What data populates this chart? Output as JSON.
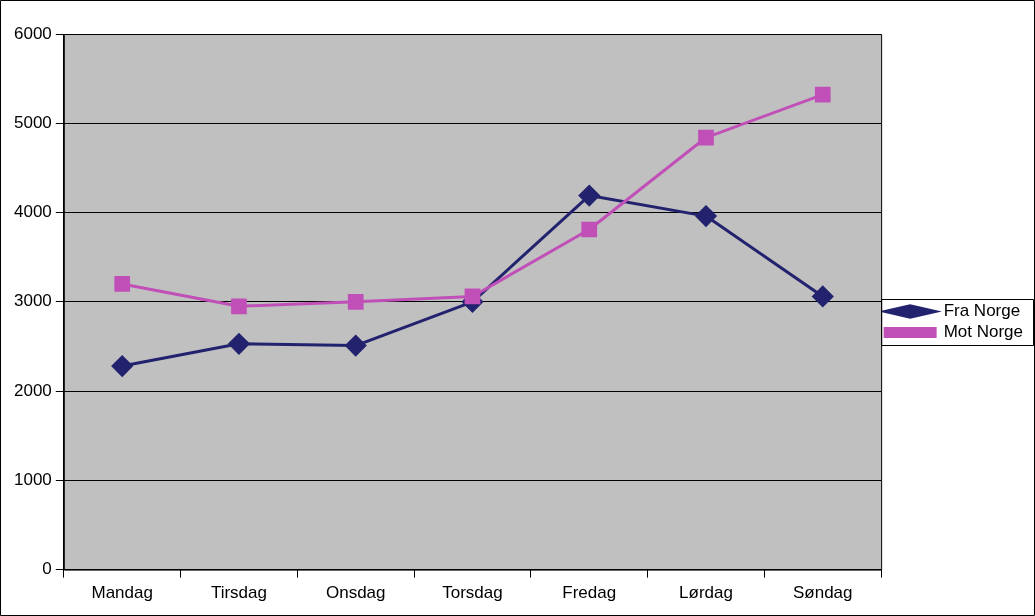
{
  "chart_data": {
    "type": "line",
    "categories": [
      "Mandag",
      "Tirsdag",
      "Onsdag",
      "Torsdag",
      "Fredag",
      "Lørdag",
      "Søndag"
    ],
    "series": [
      {
        "name": "Fra Norge",
        "color": "#22226e",
        "marker": "diamond",
        "values": [
          2280,
          2530,
          2510,
          3000,
          4190,
          3960,
          3060
        ]
      },
      {
        "name": "Mot Norge",
        "color": "#c050b8",
        "marker": "square",
        "values": [
          3200,
          2950,
          3000,
          3060,
          3810,
          4840,
          5320
        ]
      }
    ],
    "ylim": [
      0,
      6000
    ],
    "yticks": [
      0,
      1000,
      2000,
      3000,
      4000,
      5000,
      6000
    ],
    "grid": "y",
    "legend": "right",
    "line_style": "solid"
  }
}
